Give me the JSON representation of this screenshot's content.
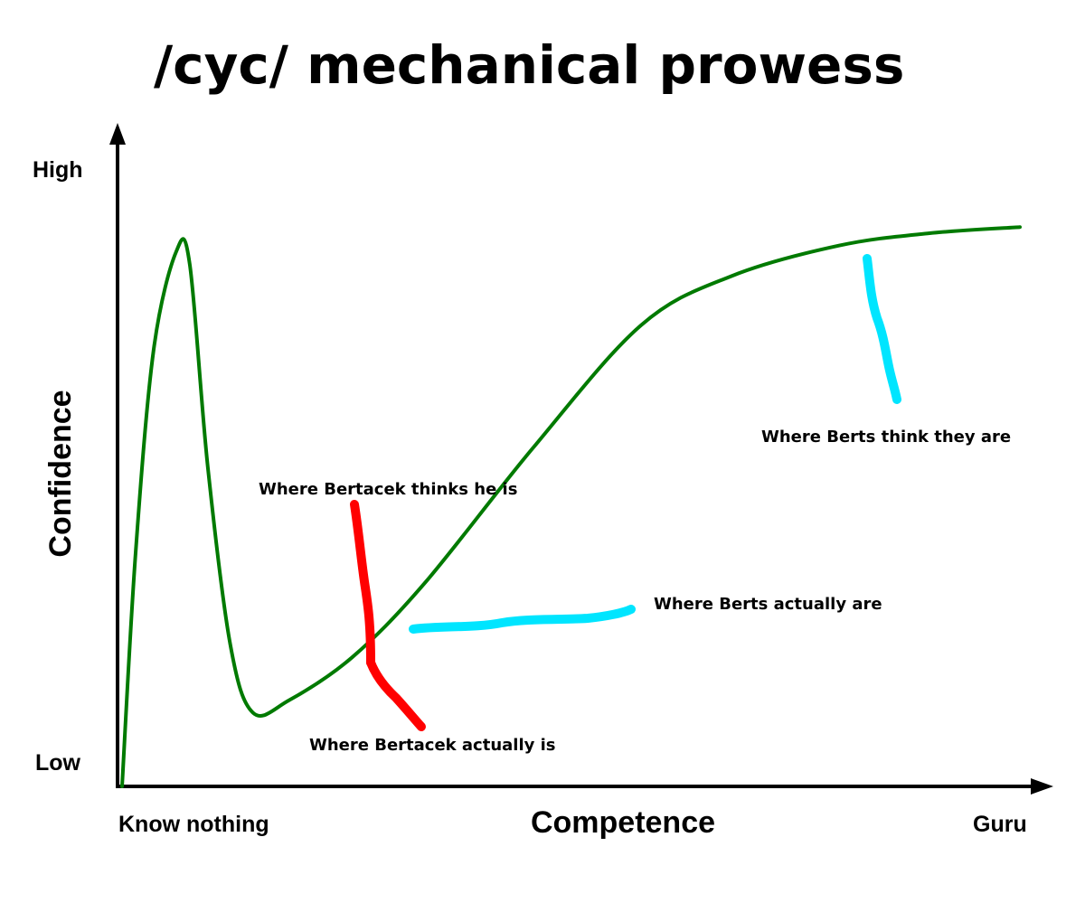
{
  "chart_data": {
    "type": "line",
    "title": "/cyc/ mechanical prowess",
    "xlabel": "Competence",
    "ylabel": "Confidence",
    "x_tick_labels": [
      "Know nothing",
      "Guru"
    ],
    "y_tick_labels": [
      "Low",
      "High"
    ],
    "xlim": [
      0,
      100
    ],
    "ylim": [
      0,
      100
    ],
    "grid": false,
    "legend": "none",
    "series": [
      {
        "color": "#007a00",
        "points": [
          {
            "x": 0.5,
            "y": 0
          },
          {
            "x": 2,
            "y": 38
          },
          {
            "x": 4,
            "y": 71
          },
          {
            "x": 6.5,
            "y": 87
          },
          {
            "x": 8,
            "y": 85
          },
          {
            "x": 10,
            "y": 52
          },
          {
            "x": 12.5,
            "y": 23
          },
          {
            "x": 15,
            "y": 12
          },
          {
            "x": 19,
            "y": 14
          },
          {
            "x": 26,
            "y": 21
          },
          {
            "x": 34,
            "y": 33
          },
          {
            "x": 46,
            "y": 55
          },
          {
            "x": 58,
            "y": 75
          },
          {
            "x": 68,
            "y": 83
          },
          {
            "x": 80,
            "y": 88
          },
          {
            "x": 90,
            "y": 90
          },
          {
            "x": 100,
            "y": 91
          }
        ]
      }
    ],
    "annotations": [
      {
        "text": "Where Bertacek thinks he is",
        "color": "#ff0000",
        "x": 27,
        "y": 47
      },
      {
        "text": "Where Bertacek actually is",
        "color": "#ff0000",
        "x": 29,
        "y": 18
      },
      {
        "text": "Where Berts actually are",
        "color": "#00e5ff",
        "x": 33,
        "y": 26
      },
      {
        "text": "Where Berts think they are",
        "color": "#00e5ff",
        "x": 83,
        "y": 89
      }
    ]
  }
}
